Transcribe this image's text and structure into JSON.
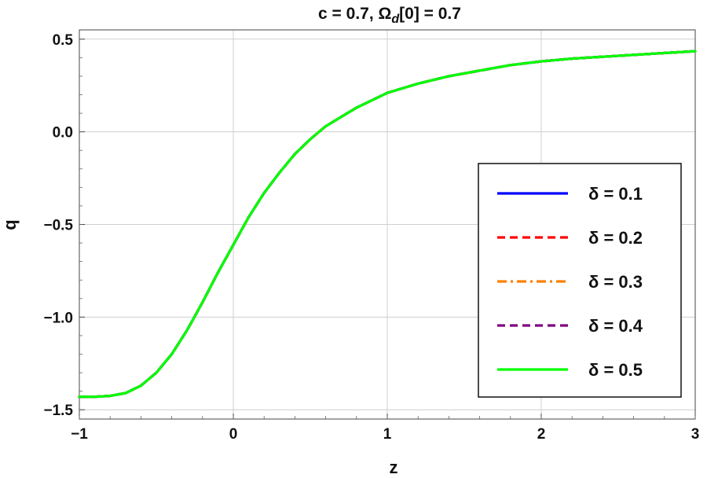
{
  "chart_data": {
    "type": "line",
    "title_parts": {
      "prefix": "c = 0.7, Ω",
      "subscript": "d",
      "suffix": "[0] = 0.7"
    },
    "xlabel": "z",
    "ylabel": "q",
    "xlim": [
      -1,
      3
    ],
    "ylim": [
      -1.55,
      0.55
    ],
    "x_ticks": [
      -1,
      0,
      1,
      2,
      3
    ],
    "x_tick_labels": [
      "−1",
      "0",
      "1",
      "2",
      "3"
    ],
    "y_ticks": [
      -1.5,
      -1.0,
      -0.5,
      0.0,
      0.5
    ],
    "y_tick_labels": [
      "−1.5",
      "−1.0",
      "−0.5",
      "0.0",
      "0.5"
    ],
    "grid": true,
    "legend_position": "right",
    "x": [
      -1.0,
      -0.9,
      -0.8,
      -0.7,
      -0.6,
      -0.5,
      -0.4,
      -0.3,
      -0.2,
      -0.1,
      0.0,
      0.1,
      0.2,
      0.3,
      0.4,
      0.5,
      0.6,
      0.7,
      0.8,
      0.9,
      1.0,
      1.2,
      1.4,
      1.6,
      1.8,
      2.0,
      2.2,
      2.4,
      2.6,
      2.8,
      3.0
    ],
    "series": [
      {
        "name": "δ = 0.1",
        "color": "#0000ff",
        "dash": "solid",
        "values": [
          -1.43,
          -1.43,
          -1.425,
          -1.41,
          -1.37,
          -1.3,
          -1.2,
          -1.07,
          -0.92,
          -0.76,
          -0.61,
          -0.46,
          -0.33,
          -0.22,
          -0.12,
          -0.04,
          0.03,
          0.08,
          0.13,
          0.17,
          0.21,
          0.26,
          0.3,
          0.33,
          0.36,
          0.38,
          0.395,
          0.405,
          0.415,
          0.425,
          0.435
        ]
      },
      {
        "name": "δ = 0.2",
        "color": "#ff0000",
        "dash": "dashed",
        "values": [
          -1.43,
          -1.43,
          -1.425,
          -1.41,
          -1.37,
          -1.3,
          -1.2,
          -1.07,
          -0.92,
          -0.76,
          -0.61,
          -0.46,
          -0.33,
          -0.22,
          -0.12,
          -0.04,
          0.03,
          0.08,
          0.13,
          0.17,
          0.21,
          0.26,
          0.3,
          0.33,
          0.36,
          0.38,
          0.395,
          0.405,
          0.415,
          0.425,
          0.435
        ]
      },
      {
        "name": "δ = 0.3",
        "color": "#ff8000",
        "dash": "dashdot",
        "values": [
          -1.43,
          -1.43,
          -1.425,
          -1.41,
          -1.37,
          -1.3,
          -1.2,
          -1.07,
          -0.92,
          -0.76,
          -0.61,
          -0.46,
          -0.33,
          -0.22,
          -0.12,
          -0.04,
          0.03,
          0.08,
          0.13,
          0.17,
          0.21,
          0.26,
          0.3,
          0.33,
          0.36,
          0.38,
          0.395,
          0.405,
          0.415,
          0.425,
          0.435
        ]
      },
      {
        "name": "δ = 0.4",
        "color": "#800080",
        "dash": "dashed",
        "values": [
          -1.43,
          -1.43,
          -1.425,
          -1.41,
          -1.37,
          -1.3,
          -1.2,
          -1.07,
          -0.92,
          -0.76,
          -0.61,
          -0.46,
          -0.33,
          -0.22,
          -0.12,
          -0.04,
          0.03,
          0.08,
          0.13,
          0.17,
          0.21,
          0.26,
          0.3,
          0.33,
          0.36,
          0.38,
          0.395,
          0.405,
          0.415,
          0.425,
          0.435
        ]
      },
      {
        "name": "δ = 0.5",
        "color": "#00ff00",
        "dash": "solid",
        "values": [
          -1.43,
          -1.43,
          -1.425,
          -1.41,
          -1.37,
          -1.3,
          -1.2,
          -1.07,
          -0.92,
          -0.76,
          -0.61,
          -0.46,
          -0.33,
          -0.22,
          -0.12,
          -0.04,
          0.03,
          0.08,
          0.13,
          0.17,
          0.21,
          0.26,
          0.3,
          0.33,
          0.36,
          0.38,
          0.395,
          0.405,
          0.415,
          0.425,
          0.435
        ]
      }
    ]
  }
}
